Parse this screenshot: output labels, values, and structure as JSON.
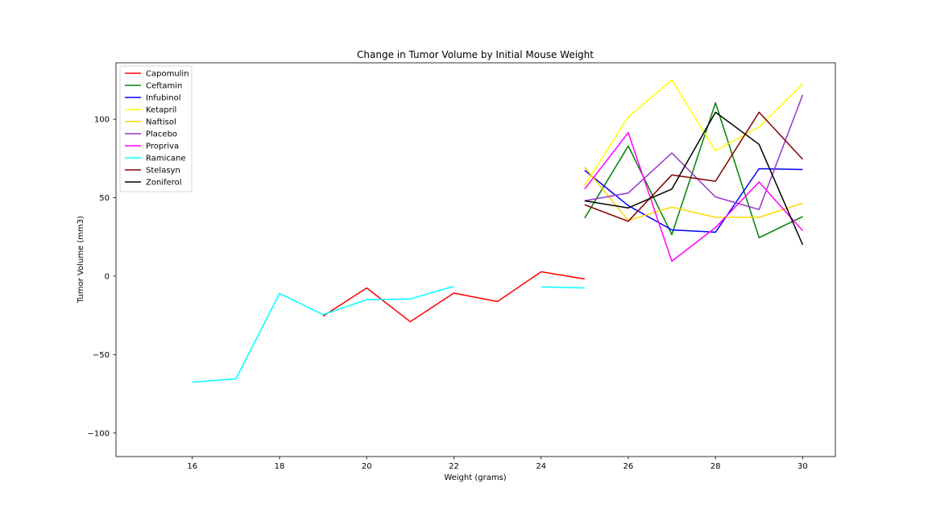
{
  "chart_data": {
    "type": "line",
    "title": "Change in Tumor Volume by Initial Mouse Weight",
    "xlabel": "Weight (grams)",
    "ylabel": "Tumor Volume (mm3)",
    "xlim": [
      14.25,
      30.75
    ],
    "ylim": [
      -115,
      136
    ],
    "x_ticks": [
      16,
      18,
      20,
      22,
      24,
      26,
      28,
      30
    ],
    "y_ticks": [
      -100,
      -50,
      0,
      50,
      100
    ],
    "y_tick_labels": [
      "−100",
      "−50",
      "0",
      "50",
      "100"
    ],
    "grid": false,
    "legend_position": "upper-left",
    "series": [
      {
        "name": "Capomulin",
        "color": "#ff0000",
        "x": [
          19,
          20,
          21,
          22,
          23,
          24,
          25
        ],
        "y": [
          -25.5,
          -7.5,
          -29,
          -10.8,
          -16.2,
          2.8,
          -1.8
        ]
      },
      {
        "name": "Ceftamin",
        "color": "#008000",
        "x": [
          25,
          26,
          27,
          28,
          29,
          30
        ],
        "y": [
          37,
          83,
          26.5,
          110.5,
          24.5,
          38
        ]
      },
      {
        "name": "Infubinol",
        "color": "#0000ff",
        "x": [
          25,
          26,
          27,
          28,
          29,
          30
        ],
        "y": [
          67.5,
          45,
          29.5,
          28,
          68.5,
          68
        ]
      },
      {
        "name": "Ketapril",
        "color": "#ffff00",
        "x": [
          25,
          26,
          27,
          28,
          29,
          30
        ],
        "y": [
          58,
          101.5,
          125,
          80,
          95,
          122.5
        ]
      },
      {
        "name": "Naftisol",
        "color": "#ffd700",
        "x": [
          25,
          26,
          27,
          28,
          29,
          30
        ],
        "y": [
          69.5,
          35.5,
          44,
          37.5,
          37.5,
          46.5
        ]
      },
      {
        "name": "Placebo",
        "color": "#9932cc",
        "x": [
          25,
          26,
          27,
          28,
          29,
          30
        ],
        "y": [
          48,
          53,
          78.5,
          50.5,
          42.5,
          115.5
        ]
      },
      {
        "name": "Propriva",
        "color": "#ff00ff",
        "x": [
          25,
          26,
          27,
          28,
          29,
          30
        ],
        "y": [
          55.5,
          91.5,
          9.5,
          31,
          60,
          29
        ]
      },
      {
        "name": "Ramicane",
        "color": "#00ffff",
        "x": [
          16,
          17,
          18,
          19,
          20,
          21,
          22,
          null,
          24,
          25
        ],
        "y": [
          -67.5,
          -65.5,
          -11,
          -24.5,
          -15,
          -14.5,
          -6.5,
          null,
          -6.8,
          -7.5
        ]
      },
      {
        "name": "Stelasyn",
        "color": "#800000",
        "x": [
          25,
          26,
          27,
          28,
          29,
          30
        ],
        "y": [
          45.5,
          35,
          64.5,
          60.5,
          104.5,
          74.5
        ]
      },
      {
        "name": "Zoniferol",
        "color": "#000000",
        "x": [
          25,
          26,
          27,
          28,
          29,
          30
        ],
        "y": [
          48,
          43.5,
          55.5,
          104.5,
          84,
          20
        ]
      }
    ]
  }
}
